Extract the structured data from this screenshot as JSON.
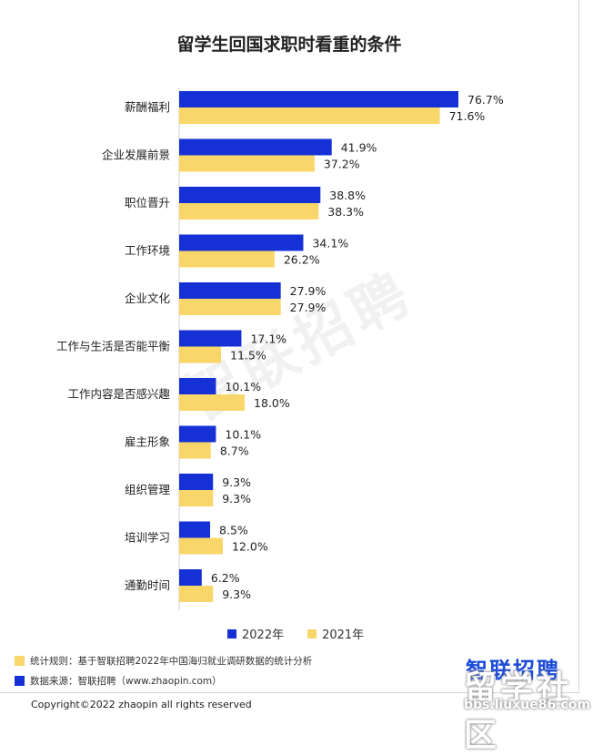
{
  "title": "留学生回国求职时看重的条件",
  "watermark": "智联招聘",
  "legend": [
    {
      "label": "2022年",
      "color": "#1531d6"
    },
    {
      "label": "2021年",
      "color": "#f9d66a"
    }
  ],
  "notes": [
    {
      "text": "统计规则：基于智联招聘2022年中国海归就业调研数据的统计分析",
      "color": "#f9d66a"
    },
    {
      "text": "数据来源：智联招聘（www.zhaopin.com）",
      "color": "#1531d6"
    }
  ],
  "logo": "智联招聘",
  "copyright": "Copyright©2022 zhaopin all rights reserved",
  "site_mark": {
    "big": "留学社区",
    "small": "bbs.liuxue86.com"
  },
  "chart_data": {
    "type": "bar",
    "orientation": "horizontal",
    "title": "留学生回国求职时看重的条件",
    "categories": [
      "薪酬福利",
      "企业发展前景",
      "职位晋升",
      "工作环境",
      "企业文化",
      "工作与生活是否能平衡",
      "工作内容是否感兴趣",
      "雇主形象",
      "组织管理",
      "培训学习",
      "通勤时间"
    ],
    "series": [
      {
        "name": "2022年",
        "color": "#1531d6",
        "values": [
          76.7,
          41.9,
          38.8,
          34.1,
          27.9,
          17.1,
          10.1,
          10.1,
          9.3,
          8.5,
          6.2
        ],
        "labels": [
          "76.7%",
          "41.9%",
          "38.8%",
          "34.1%",
          "27.9%",
          "17.1%",
          "10.1%",
          "10.1%",
          "9.3%",
          "8.5%",
          "6.2%"
        ]
      },
      {
        "name": "2021年",
        "color": "#f9d66a",
        "values": [
          71.6,
          37.2,
          38.3,
          26.2,
          27.9,
          11.5,
          18.0,
          8.7,
          9.3,
          12.0,
          9.3
        ],
        "labels": [
          "71.6%",
          "37.2%",
          "38.3%",
          "26.2%",
          "27.9%",
          "11.5%",
          "18.0%",
          "8.7%",
          "9.3%",
          "12.0%",
          "9.3%"
        ]
      }
    ],
    "xlim": [
      0,
      76.7
    ],
    "grid": false,
    "legend_position": "bottom"
  }
}
